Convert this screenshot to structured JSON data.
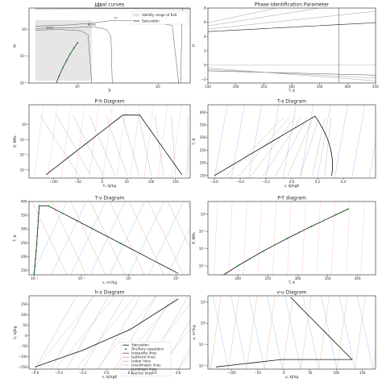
{
  "colors": {
    "saturation": "#111111",
    "ancillary": "#2ca02c",
    "isoquality": "#555555",
    "isotherm": "#e88a8a",
    "isobar": "#b0b0b0",
    "isenthalpic": "#ffb3b3",
    "isentropic": "#9aa6ff",
    "isochor": "#cfd6ff",
    "validity": "#e6e6e6"
  },
  "chart_data": [
    {
      "type": "line",
      "title": "Ideal curves",
      "xlabel": "Tr",
      "ylabel": "Pr",
      "xscale": "log",
      "yscale": "log",
      "xlim": [
        0.25,
        25
      ],
      "ylim": [
        0.001,
        400
      ],
      "xticks": [
        "10⁰",
        "10¹"
      ],
      "yticks": [
        "10⁻³",
        "10⁻¹",
        "10¹"
      ],
      "annotations": [
        "puzn",
        "ideal",
        "Boyle",
        "JT"
      ],
      "legend": [
        "Validity range of EoS",
        "Saturation"
      ],
      "legend_position": "top-right"
    },
    {
      "type": "line",
      "title": "Phase Identification Parameter",
      "xlabel": "T, K",
      "ylabel": "Π",
      "xlim": [
        150,
        450
      ],
      "ylim": [
        -2.5,
        8
      ],
      "xticks": [
        "150",
        "200",
        "250",
        "300",
        "350",
        "400",
        "450"
      ],
      "yticks": [
        "−2",
        "0",
        "2",
        "4",
        "6",
        "8"
      ]
    },
    {
      "type": "line",
      "title": "P-h Diagram",
      "xlabel": "h, kJ/kg",
      "ylabel": "P, MPa",
      "yscale": "log",
      "xlim": [
        -150,
        180
      ],
      "ylim": [
        0.0003,
        20
      ],
      "xticks": [
        "−100",
        "−50",
        "0",
        "50",
        "100",
        "150"
      ],
      "yticks": [
        "10⁻³",
        "10⁻²",
        "10⁻¹",
        "10⁰"
      ]
    },
    {
      "type": "line",
      "title": "T-s Diagram",
      "xlabel": "s, kJ/kgK",
      "ylabel": "T, K",
      "xlim": [
        -0.65,
        0.65
      ],
      "ylim": [
        140,
        430
      ],
      "xticks": [
        "−0.6",
        "−0.4",
        "−0.2",
        "0.0",
        "0.2",
        "0.4"
      ],
      "yticks": [
        "150",
        "200",
        "250",
        "300",
        "350",
        "400"
      ]
    },
    {
      "type": "line",
      "title": "T-v Diagram",
      "xlabel": "v, m³/kg",
      "ylabel": "T, K",
      "xscale": "log",
      "xlim": [
        0.0006,
        4000
      ],
      "ylim": [
        135,
        400
      ],
      "xticks": [
        "10⁻³",
        "10⁻¹",
        "10¹",
        "10³"
      ],
      "yticks": [
        "150",
        "200",
        "250",
        "300",
        "350",
        "400"
      ]
    },
    {
      "type": "line",
      "title": "P-T diagram",
      "xlabel": "T, K",
      "ylabel": "P, MPa",
      "yscale": "log",
      "xlim": [
        150,
        430
      ],
      "ylim": [
        1e-07,
        30
      ],
      "xticks": [
        "200",
        "250",
        "300",
        "350",
        "400"
      ],
      "yticks": [
        "10⁻⁶",
        "10⁻⁴",
        "10⁻²",
        "10⁰"
      ]
    },
    {
      "type": "line",
      "title": "h-s Diagram",
      "xlabel": "s, kJ/kgK",
      "ylabel": "h, kJ/kg",
      "xlim": [
        -0.65,
        0.7
      ],
      "ylim": [
        -160,
        190
      ],
      "xticks": [
        "−0.6",
        "−0.4",
        "−0.2",
        "0.0",
        "0.2",
        "0.4",
        "0.6"
      ],
      "yticks": [
        "−150",
        "−100",
        "−50",
        "0",
        "50",
        "100",
        "150"
      ],
      "legend": [
        "Saturation",
        "Ancillary equations",
        "Isoquality lines",
        "Isotherm lines",
        "Isobar lines",
        "Isoenthalpic lines",
        "Isentropic lines",
        "Isochor lines"
      ],
      "legend_position": "lower-right"
    },
    {
      "type": "line",
      "title": "v-u Diagram",
      "xlabel": "u, kJ/kg",
      "ylabel": "v, m³/kg",
      "yscale": "log",
      "xlim": [
        -145,
        175
      ],
      "ylim": [
        0.0005,
        4000
      ],
      "xticks": [
        "−100",
        "−50",
        "0",
        "50",
        "100",
        "150"
      ],
      "yticks": [
        "10⁻³",
        "10⁻¹",
        "10¹",
        "10³"
      ]
    }
  ]
}
